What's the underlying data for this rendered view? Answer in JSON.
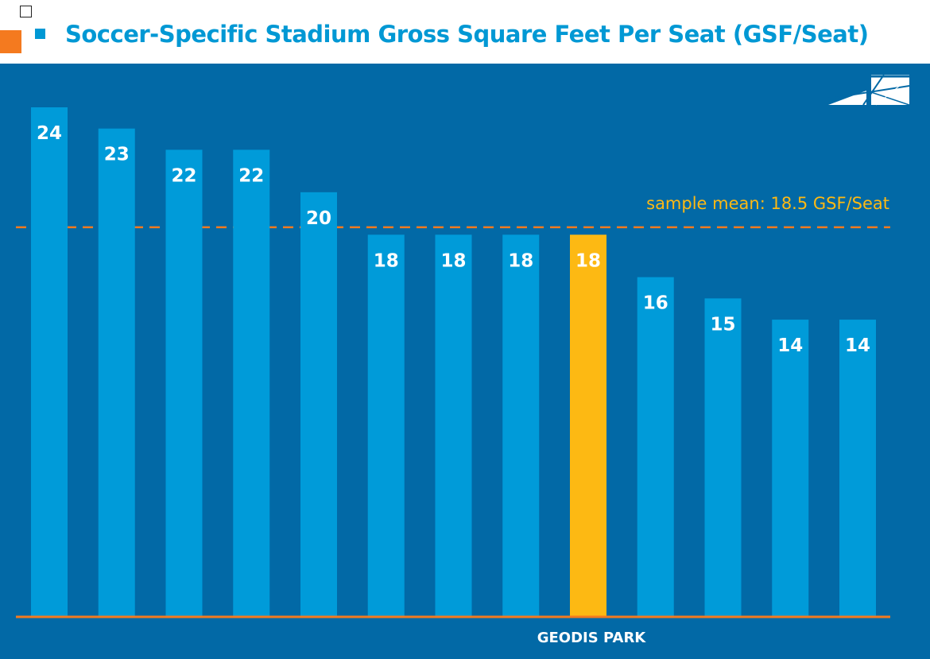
{
  "page": {
    "title": "Soccer-Specific Stadium Gross Square Feet Per Seat (GSF/Seat)"
  },
  "colors": {
    "title": "#0098d4",
    "panel_background": "#0269a6",
    "bar": "#009bd9",
    "highlight_bar": "#fdb913",
    "mean_line": "#f47a1f",
    "mean_label": "#fdb913",
    "baseline": "#f47a1f",
    "bar_label": "#ffffff"
  },
  "chart_data": {
    "type": "bar",
    "title": "Soccer-Specific Stadium Gross Square Feet Per Seat (GSF/Seat)",
    "values": [
      24,
      23,
      22,
      22,
      20,
      18,
      18,
      18,
      18,
      16,
      15,
      14,
      14
    ],
    "categories": [
      "",
      "",
      "",
      "",
      "",
      "",
      "",
      "",
      "GEODIS PARK",
      "",
      "",
      "",
      ""
    ],
    "highlight_index": 8,
    "ylim": [
      0,
      24
    ],
    "grid": false,
    "reference_line": {
      "value": 18.5,
      "label": "sample mean: 18.5 GSF/Seat"
    }
  }
}
